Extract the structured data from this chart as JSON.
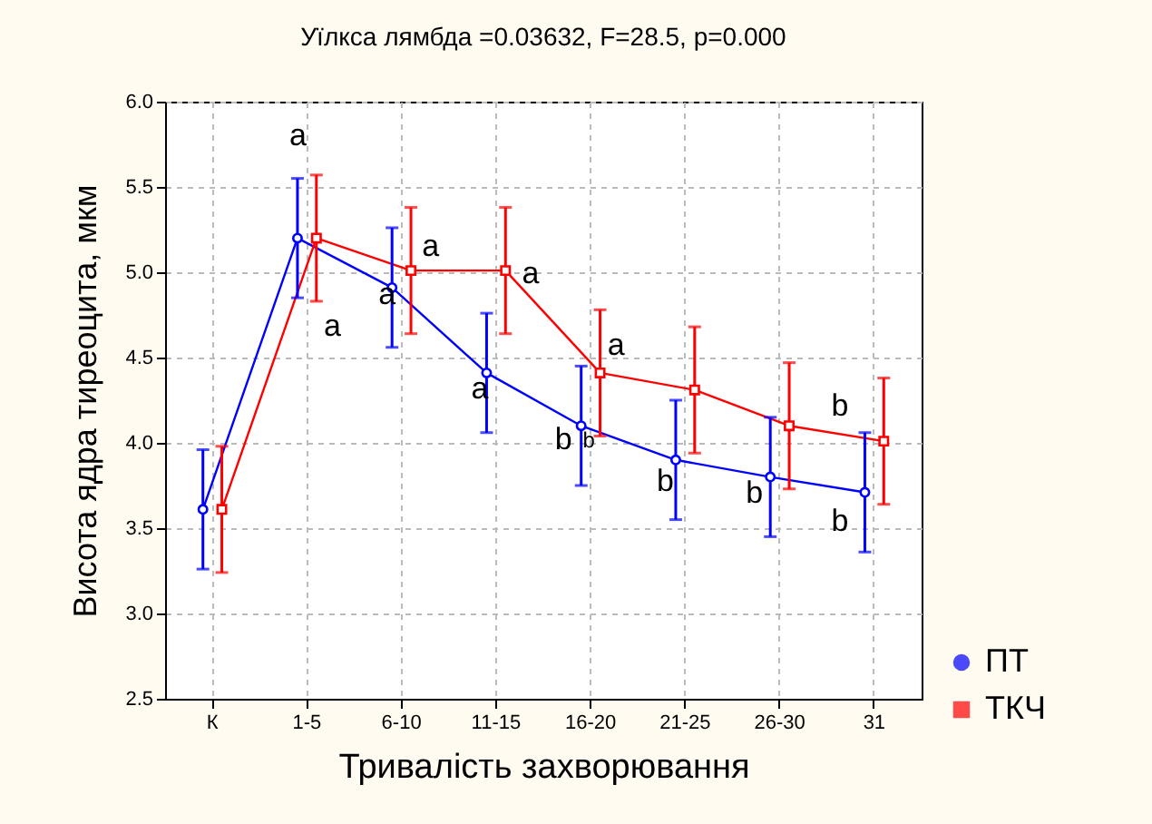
{
  "chart_data": {
    "type": "line",
    "title": "Уїлкса лямбда =0.03632, F=28.5, p=0.000",
    "xlabel": "Тривалість захворювання",
    "ylabel": "Висота ядра тиреоцита, мкм",
    "categories": [
      "К",
      "1-5",
      "6-10",
      "11-15",
      "16-20",
      "21-25",
      "26-30",
      "31"
    ],
    "series": [
      {
        "name": "ПТ",
        "color": "#0000ff",
        "marker": "circle",
        "values": [
          3.61,
          5.2,
          4.91,
          4.41,
          4.1,
          3.9,
          3.8,
          3.71
        ],
        "errors": [
          0.35,
          0.35,
          0.35,
          0.35,
          0.35,
          0.35,
          0.35,
          0.35
        ]
      },
      {
        "name": "ТКЧ",
        "color": "#ff0000",
        "marker": "square",
        "values": [
          3.61,
          5.2,
          5.01,
          5.01,
          4.41,
          4.31,
          4.1,
          4.01
        ],
        "errors": [
          0.37,
          0.37,
          0.37,
          0.37,
          0.37,
          0.37,
          0.37,
          0.37
        ]
      }
    ],
    "ylim": [
      2.5,
      6.0
    ],
    "yticks": [
      {
        "value": 2.5,
        "label": "2.5"
      },
      {
        "value": 3,
        "label": "3.0"
      },
      {
        "value": 3.5,
        "label": "3.5"
      },
      {
        "value": 4,
        "label": "4.0"
      },
      {
        "value": 4.5,
        "label": "4.5"
      },
      {
        "value": 5,
        "label": "5.0"
      },
      {
        "value": 5.5,
        "label": "5.5"
      },
      {
        "value": 6,
        "label": "6.0"
      }
    ],
    "grid": true,
    "legend": "bottom right",
    "line_style": "solid",
    "annotations": [
      {
        "text": "a",
        "x": "1-5",
        "y": 5.2
      },
      {
        "text": "a",
        "x": "1-5",
        "y": 5.2
      },
      {
        "text": "a",
        "x": "6-10",
        "y": 4.91
      },
      {
        "text": "a",
        "x": "6-10",
        "y": 5.01
      },
      {
        "text": "a",
        "x": "11-15",
        "y": 5.01
      },
      {
        "text": "a",
        "x": "11-15",
        "y": 4.41
      },
      {
        "text": "a",
        "x": "16-20",
        "y": 4.41
      },
      {
        "text": "b",
        "x": "16-20",
        "y": 4.1
      },
      {
        "text": "b",
        "x": "16-20",
        "y": 4.41
      },
      {
        "text": "b",
        "x": "21-25",
        "y": 3.9
      },
      {
        "text": "b",
        "x": "26-30",
        "y": 3.8
      },
      {
        "text": "b",
        "x": "31",
        "y": 4.01
      },
      {
        "text": "b",
        "x": "31",
        "y": 3.71
      }
    ]
  }
}
